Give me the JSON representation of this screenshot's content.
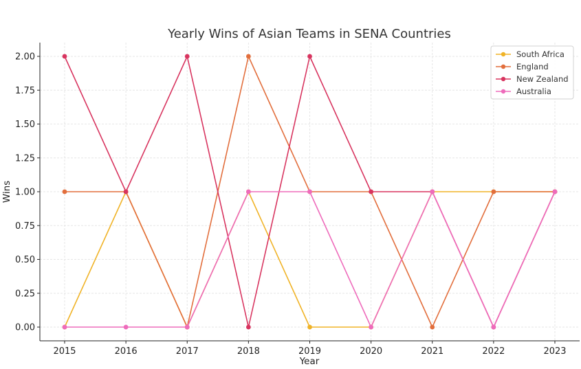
{
  "chart_data": {
    "type": "line",
    "title": "Yearly Wins of Asian Teams in SENA Countries",
    "xlabel": "Year",
    "ylabel": "Wins",
    "x": [
      "2015",
      "2016",
      "2017",
      "2018",
      "2019",
      "2020",
      "2021",
      "2022",
      "2023"
    ],
    "ylim": [
      0,
      2
    ],
    "yticks": [
      "0.00",
      "0.25",
      "0.50",
      "0.75",
      "1.00",
      "1.25",
      "1.50",
      "1.75",
      "2.00"
    ],
    "grid": true,
    "legend_position": "top-right",
    "series": [
      {
        "name": "South Africa",
        "color": "#f0b327",
        "values": [
          0,
          1,
          0,
          1,
          0,
          0,
          1,
          1,
          1
        ]
      },
      {
        "name": "England",
        "color": "#e26e3c",
        "values": [
          1,
          1,
          0,
          2,
          1,
          1,
          0,
          1,
          1
        ]
      },
      {
        "name": "New Zealand",
        "color": "#d8345f",
        "values": [
          2,
          1,
          2,
          0,
          2,
          1,
          1,
          0,
          1
        ]
      },
      {
        "name": "Australia",
        "color": "#ee6bbb",
        "values": [
          0,
          0,
          0,
          1,
          1,
          0,
          1,
          0,
          1
        ]
      }
    ]
  }
}
